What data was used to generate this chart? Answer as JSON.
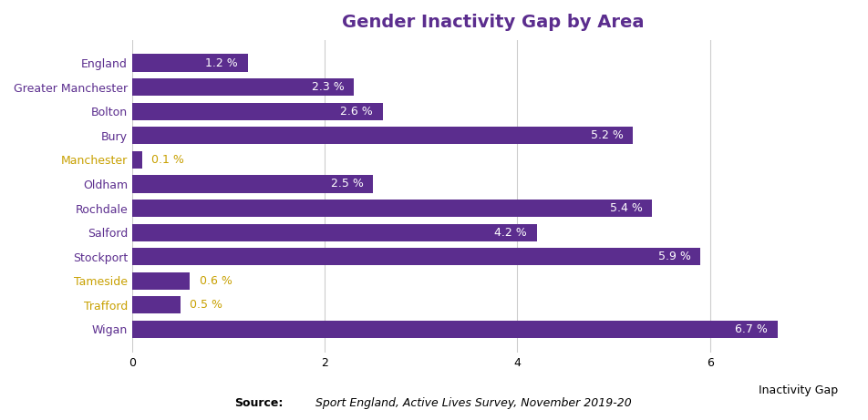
{
  "categories": [
    "England",
    "Greater Manchester",
    "Bolton",
    "Bury",
    "Manchester",
    "Oldham",
    "Rochdale",
    "Salford",
    "Stockport",
    "Tameside",
    "Trafford",
    "Wigan"
  ],
  "values": [
    1.2,
    2.3,
    2.6,
    5.2,
    0.1,
    2.5,
    5.4,
    4.2,
    5.9,
    0.6,
    0.5,
    6.7
  ],
  "bar_color": "#5b2d8e",
  "title": "Gender Inactivity Gap by Area",
  "title_color": "#5b2d8e",
  "xlabel": "Inactivity Gap",
  "xlim": [
    0,
    7.5
  ],
  "xticks": [
    0,
    2,
    4,
    6
  ],
  "label_colors": {
    "England": "#5b2d8e",
    "Greater Manchester": "#5b2d8e",
    "Bolton": "#5b2d8e",
    "Bury": "#5b2d8e",
    "Manchester": "#c8a000",
    "Oldham": "#5b2d8e",
    "Rochdale": "#5b2d8e",
    "Salford": "#5b2d8e",
    "Stockport": "#5b2d8e",
    "Tameside": "#c8a000",
    "Trafford": "#c8a000",
    "Wigan": "#5b2d8e"
  },
  "small_outside_threshold": 1.0,
  "source_bold": "Source:",
  "source_italic": "  Sport England, Active Lives Survey, November 2019-20",
  "background_color": "#ffffff",
  "bar_height": 0.72,
  "grid_color": "#cccccc",
  "title_fontsize": 14,
  "tick_fontsize": 9,
  "label_fontsize": 9
}
